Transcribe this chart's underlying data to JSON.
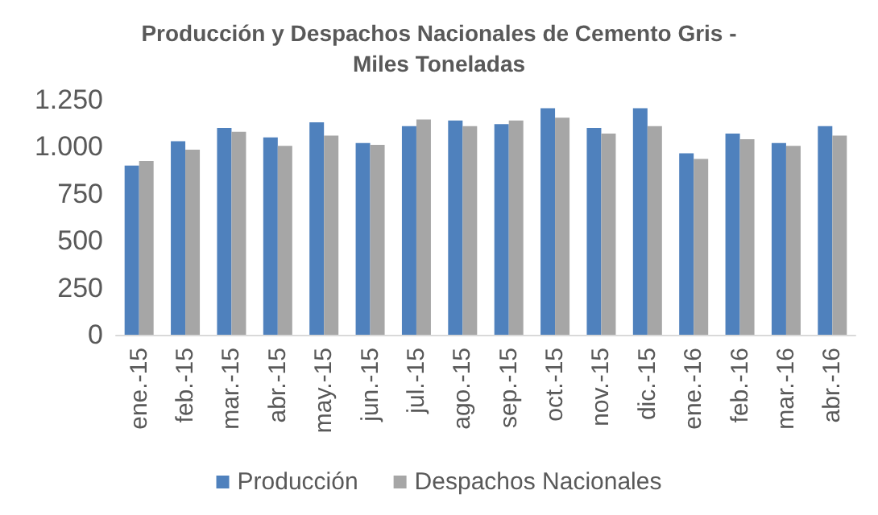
{
  "chart_data": {
    "type": "bar",
    "title": "Producción y Despachos Nacionales de Cemento Gris -\nMiles Toneladas",
    "categories": [
      "ene.-15",
      "feb.-15",
      "mar.-15",
      "abr.-15",
      "may.-15",
      "jun.-15",
      "jul.-15",
      "ago.-15",
      "sep.-15",
      "oct.-15",
      "nov.-15",
      "dic.-15",
      "ene.-16",
      "feb.-16",
      "mar.-16",
      "abr.-16"
    ],
    "series": [
      {
        "name": "Producción",
        "color": "#4f81bd",
        "values": [
          900,
          1030,
          1100,
          1050,
          1130,
          1020,
          1110,
          1140,
          1120,
          1205,
          1100,
          1205,
          965,
          1070,
          1020,
          1110
        ]
      },
      {
        "name": "Despachos Nacionales",
        "color": "#a6a6a6",
        "values": [
          925,
          985,
          1080,
          1005,
          1060,
          1010,
          1145,
          1110,
          1140,
          1155,
          1070,
          1110,
          935,
          1040,
          1005,
          1060
        ]
      }
    ],
    "ylim": [
      0,
      1250
    ],
    "yticks": [
      {
        "value": 0,
        "label": "0"
      },
      {
        "value": 250,
        "label": "250"
      },
      {
        "value": 500,
        "label": "500"
      },
      {
        "value": 750,
        "label": "750"
      },
      {
        "value": 1000,
        "label": "1.000"
      },
      {
        "value": 1250,
        "label": "1.250"
      }
    ],
    "grid": false,
    "legend": "bottom"
  }
}
